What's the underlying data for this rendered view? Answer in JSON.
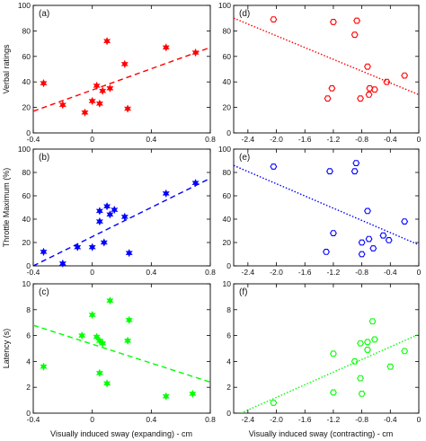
{
  "figure": {
    "xlabel_left": "Visually induced sway (expanding) - cm",
    "xlabel_right": "Visually induced sway (contracting) - cm"
  },
  "chart_data": [
    {
      "type": "scatter",
      "tag": "(a)",
      "ylabel": "Verbal ratings",
      "color": "#ff0000",
      "marker": "filled-star",
      "line_style": "dashed",
      "xlim": [
        -0.4,
        0.8
      ],
      "ylim": [
        0,
        100
      ],
      "xticks": [
        -0.4,
        0,
        0.4,
        0.8
      ],
      "yticks": [
        0,
        20,
        40,
        60,
        80,
        100
      ],
      "xtick_labels": [
        "-0.4",
        "0",
        "0.4",
        "0.8"
      ],
      "ytick_labels": [
        "0",
        "20",
        "40",
        "60",
        "80",
        "100"
      ],
      "show_xtick_labels": true,
      "show_ytick_labels": true,
      "points": [
        [
          -0.33,
          39
        ],
        [
          -0.2,
          22
        ],
        [
          -0.05,
          16
        ],
        [
          0.0,
          25
        ],
        [
          0.03,
          37
        ],
        [
          0.05,
          23
        ],
        [
          0.07,
          33
        ],
        [
          0.1,
          72
        ],
        [
          0.12,
          35
        ],
        [
          0.22,
          54
        ],
        [
          0.24,
          19
        ],
        [
          0.5,
          67
        ],
        [
          0.7,
          63
        ]
      ],
      "fit": [
        [
          -0.4,
          17
        ],
        [
          0.8,
          67
        ]
      ]
    },
    {
      "type": "scatter",
      "tag": "(d)",
      "ylabel": "",
      "color": "#ff0000",
      "marker": "open-hexagon",
      "line_style": "dotted",
      "xlim": [
        -2.6,
        0
      ],
      "ylim": [
        0,
        100
      ],
      "xticks": [
        -2.4,
        -2.0,
        -1.6,
        -1.2,
        -0.8,
        -0.4,
        0
      ],
      "yticks": [
        0,
        20,
        40,
        60,
        80,
        100
      ],
      "xtick_labels": [
        "-2.4",
        "-2.0",
        "-1.6",
        "-1.2",
        "-0.8",
        "-0.4",
        "0"
      ],
      "ytick_labels": [
        "0",
        "20",
        "40",
        "60",
        "80",
        "100"
      ],
      "show_xtick_labels": true,
      "show_ytick_labels": true,
      "points": [
        [
          -2.04,
          89
        ],
        [
          -1.2,
          87
        ],
        [
          -0.87,
          88
        ],
        [
          -0.9,
          77
        ],
        [
          -1.28,
          27
        ],
        [
          -1.22,
          35
        ],
        [
          -0.82,
          27
        ],
        [
          -0.7,
          30
        ],
        [
          -0.72,
          52
        ],
        [
          -0.69,
          35
        ],
        [
          -0.62,
          34
        ],
        [
          -0.45,
          40
        ],
        [
          -0.2,
          45
        ]
      ],
      "fit": [
        [
          -2.6,
          90
        ],
        [
          0,
          30
        ]
      ]
    },
    {
      "type": "scatter",
      "tag": "(b)",
      "ylabel": "Throttle Maximum (%)",
      "color": "#0000ff",
      "marker": "filled-star",
      "line_style": "dashed",
      "xlim": [
        -0.4,
        0.8
      ],
      "ylim": [
        0,
        100
      ],
      "xticks": [
        -0.4,
        0,
        0.4,
        0.8
      ],
      "yticks": [
        0,
        20,
        40,
        60,
        80,
        100
      ],
      "xtick_labels": [
        "-0.4",
        "0",
        "0.4",
        "0.8"
      ],
      "ytick_labels": [
        "0",
        "20",
        "40",
        "60",
        "80",
        "100"
      ],
      "show_xtick_labels": true,
      "show_ytick_labels": true,
      "points": [
        [
          -0.33,
          12
        ],
        [
          -0.2,
          2
        ],
        [
          -0.1,
          16
        ],
        [
          0.0,
          16
        ],
        [
          0.05,
          47
        ],
        [
          0.05,
          38
        ],
        [
          0.08,
          20
        ],
        [
          0.1,
          51
        ],
        [
          0.12,
          44
        ],
        [
          0.15,
          48
        ],
        [
          0.22,
          42
        ],
        [
          0.25,
          11
        ],
        [
          0.5,
          62
        ],
        [
          0.7,
          71
        ]
      ],
      "fit": [
        [
          -0.4,
          0
        ],
        [
          0.8,
          75
        ]
      ]
    },
    {
      "type": "scatter",
      "tag": "(e)",
      "ylabel": "",
      "color": "#0000ff",
      "marker": "open-hexagon",
      "line_style": "dotted",
      "xlim": [
        -2.6,
        0
      ],
      "ylim": [
        0,
        100
      ],
      "xticks": [
        -2.4,
        -2.0,
        -1.6,
        -1.2,
        -0.8,
        -0.4,
        0
      ],
      "yticks": [
        0,
        20,
        40,
        60,
        80,
        100
      ],
      "xtick_labels": [
        "-2.4",
        "-2.0",
        "-1.6",
        "-1.2",
        "-0.8",
        "-0.4",
        "0"
      ],
      "ytick_labels": [
        "0",
        "20",
        "40",
        "60",
        "80",
        "100"
      ],
      "show_xtick_labels": true,
      "show_ytick_labels": true,
      "points": [
        [
          -2.04,
          85
        ],
        [
          -1.25,
          81
        ],
        [
          -0.88,
          88
        ],
        [
          -0.9,
          81
        ],
        [
          -1.2,
          28
        ],
        [
          -1.3,
          12
        ],
        [
          -0.8,
          20
        ],
        [
          -0.72,
          47
        ],
        [
          -0.7,
          23
        ],
        [
          -0.64,
          15
        ],
        [
          -0.5,
          26
        ],
        [
          -0.42,
          22
        ],
        [
          -0.8,
          10
        ],
        [
          -0.2,
          38
        ]
      ],
      "fit": [
        [
          -2.6,
          86
        ],
        [
          0,
          18
        ]
      ]
    },
    {
      "type": "scatter",
      "tag": "(c)",
      "ylabel": "Latency (s)",
      "color": "#00ff00",
      "marker": "filled-star",
      "line_style": "dashed",
      "xlim": [
        -0.4,
        0.8
      ],
      "ylim": [
        0,
        10
      ],
      "xticks": [
        -0.4,
        0,
        0.4,
        0.8
      ],
      "yticks": [
        0,
        2,
        4,
        6,
        8,
        10
      ],
      "xtick_labels": [
        "-0.4",
        "0",
        "0.4",
        "0.8"
      ],
      "ytick_labels": [
        "0",
        "2",
        "4",
        "6",
        "8",
        "10"
      ],
      "show_xtick_labels": true,
      "show_ytick_labels": true,
      "points": [
        [
          -0.33,
          3.6
        ],
        [
          -0.07,
          6.0
        ],
        [
          0.0,
          7.6
        ],
        [
          0.03,
          5.9
        ],
        [
          0.05,
          5.6
        ],
        [
          0.05,
          3.1
        ],
        [
          0.07,
          5.4
        ],
        [
          0.1,
          2.3
        ],
        [
          0.12,
          8.7
        ],
        [
          0.25,
          7.2
        ],
        [
          0.24,
          5.6
        ],
        [
          0.5,
          1.3
        ],
        [
          0.68,
          1.5
        ]
      ],
      "fit": [
        [
          -0.4,
          6.8
        ],
        [
          0.8,
          2.4
        ]
      ]
    },
    {
      "type": "scatter",
      "tag": "(f)",
      "ylabel": "",
      "color": "#00ff00",
      "marker": "open-hexagon",
      "line_style": "dotted",
      "xlim": [
        -2.6,
        0
      ],
      "ylim": [
        0,
        10
      ],
      "xticks": [
        -2.4,
        -2.0,
        -1.6,
        -1.2,
        -0.8,
        -0.4,
        0
      ],
      "yticks": [
        0,
        2,
        4,
        6,
        8,
        10
      ],
      "xtick_labels": [
        "-2.4",
        "-2.0",
        "-1.6",
        "-1.2",
        "-0.8",
        "-0.4",
        "0"
      ],
      "ytick_labels": [
        "0",
        "2",
        "4",
        "6",
        "8",
        "10"
      ],
      "show_xtick_labels": true,
      "show_ytick_labels": true,
      "points": [
        [
          -2.04,
          0.8
        ],
        [
          -1.2,
          4.6
        ],
        [
          -1.2,
          1.6
        ],
        [
          -0.9,
          4.0
        ],
        [
          -0.82,
          5.4
        ],
        [
          -0.82,
          2.7
        ],
        [
          -0.72,
          5.5
        ],
        [
          -0.72,
          4.9
        ],
        [
          -0.65,
          7.1
        ],
        [
          -0.62,
          5.7
        ],
        [
          -0.4,
          3.6
        ],
        [
          -0.2,
          4.8
        ],
        [
          -0.8,
          1.5
        ]
      ],
      "fit": [
        [
          -2.5,
          0
        ],
        [
          0,
          6.1
        ]
      ]
    }
  ]
}
